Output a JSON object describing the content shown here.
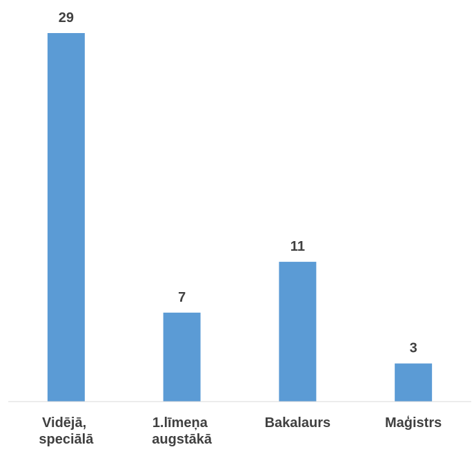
{
  "chart_data": {
    "type": "bar",
    "categories": [
      "Vidējā, speciālā",
      "1.līmeņa augstākā",
      "Bakalaurs",
      "Maģistrs"
    ],
    "values": [
      29,
      7,
      11,
      3
    ],
    "color": "#5b9bd5"
  }
}
